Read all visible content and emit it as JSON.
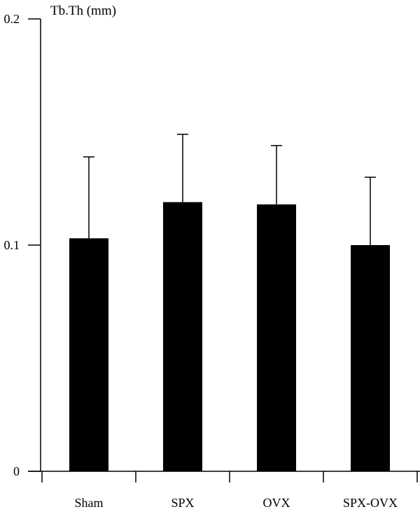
{
  "chart_data": {
    "type": "bar",
    "ylabel": "Tb.Th (mm)",
    "categories": [
      "Sham",
      "SPX",
      "OVX",
      "SPX-OVX"
    ],
    "values": [
      0.103,
      0.119,
      0.118,
      0.1
    ],
    "error_upper": [
      0.139,
      0.149,
      0.144,
      0.13
    ],
    "ylim": [
      0,
      0.2
    ],
    "yticks": [
      0,
      0.1,
      0.2
    ],
    "ytick_labels": [
      "0",
      "0.1",
      "0.2"
    ],
    "bar_color": "#000000",
    "axis_color": "#000000",
    "grid": false,
    "legend": "none"
  }
}
